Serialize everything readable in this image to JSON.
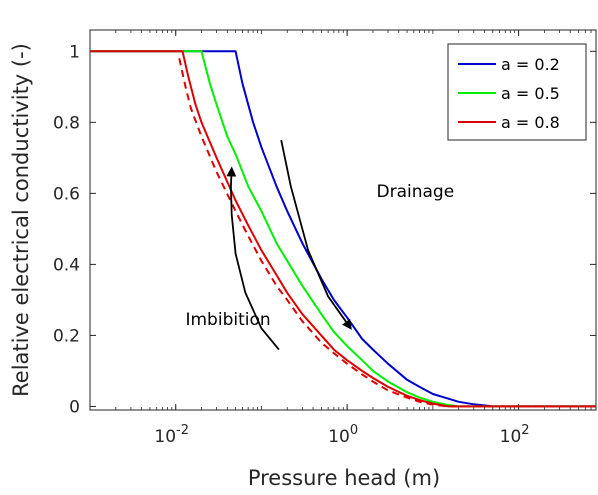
{
  "chart_data": {
    "type": "line",
    "xlabel": "Pressure head (m)",
    "ylabel": "Relative electrical conductivity (-)",
    "xscale": "log",
    "xlim": [
      0.001,
      800
    ],
    "ylim": [
      -0.01,
      1.06
    ],
    "x_ticks": [
      {
        "value": 0.01,
        "base": "10",
        "exp": "-2"
      },
      {
        "value": 1,
        "base": "10",
        "exp": "0"
      },
      {
        "value": 100,
        "base": "10",
        "exp": "2"
      }
    ],
    "y_ticks": [
      {
        "value": 0,
        "label": "0"
      },
      {
        "value": 0.2,
        "label": "0.2"
      },
      {
        "value": 0.4,
        "label": "0.4"
      },
      {
        "value": 0.6,
        "label": "0.6"
      },
      {
        "value": 0.8,
        "label": "0.8"
      },
      {
        "value": 1,
        "label": "1"
      }
    ],
    "legend_position": "top-right",
    "series": [
      {
        "name": "a = 0.2",
        "color": "#0000cc",
        "style": "solid",
        "points": [
          [
            0.001,
            1
          ],
          [
            0.05,
            1
          ],
          [
            0.06,
            0.91
          ],
          [
            0.08,
            0.8
          ],
          [
            0.1,
            0.73
          ],
          [
            0.15,
            0.62
          ],
          [
            0.2,
            0.55
          ],
          [
            0.3,
            0.46
          ],
          [
            0.5,
            0.36
          ],
          [
            0.7,
            0.3
          ],
          [
            1,
            0.25
          ],
          [
            1.5,
            0.19
          ],
          [
            2,
            0.16
          ],
          [
            3,
            0.12
          ],
          [
            5,
            0.075
          ],
          [
            7,
            0.055
          ],
          [
            10,
            0.035
          ],
          [
            15,
            0.022
          ],
          [
            20,
            0.013
          ],
          [
            30,
            0.006
          ],
          [
            50,
            0
          ],
          [
            800,
            0
          ]
        ]
      },
      {
        "name": "a = 0.5",
        "color": "#00ee00",
        "style": "solid",
        "points": [
          [
            0.001,
            1
          ],
          [
            0.02,
            1
          ],
          [
            0.025,
            0.91
          ],
          [
            0.03,
            0.85
          ],
          [
            0.04,
            0.76
          ],
          [
            0.05,
            0.71
          ],
          [
            0.07,
            0.62
          ],
          [
            0.1,
            0.55
          ],
          [
            0.15,
            0.46
          ],
          [
            0.2,
            0.41
          ],
          [
            0.3,
            0.34
          ],
          [
            0.5,
            0.26
          ],
          [
            0.7,
            0.21
          ],
          [
            1,
            0.17
          ],
          [
            1.5,
            0.13
          ],
          [
            2,
            0.1
          ],
          [
            3,
            0.07
          ],
          [
            5,
            0.04
          ],
          [
            7,
            0.025
          ],
          [
            10,
            0.013
          ],
          [
            15,
            0.004
          ],
          [
            20,
            0
          ],
          [
            800,
            0
          ]
        ]
      },
      {
        "name": "a = 0.8",
        "color": "#dd0000",
        "style": "solid",
        "points": [
          [
            0.001,
            1
          ],
          [
            0.012,
            1
          ],
          [
            0.014,
            0.93
          ],
          [
            0.017,
            0.85
          ],
          [
            0.02,
            0.8
          ],
          [
            0.03,
            0.7
          ],
          [
            0.05,
            0.58
          ],
          [
            0.07,
            0.51
          ],
          [
            0.1,
            0.44
          ],
          [
            0.15,
            0.37
          ],
          [
            0.2,
            0.32
          ],
          [
            0.3,
            0.26
          ],
          [
            0.5,
            0.2
          ],
          [
            0.7,
            0.16
          ],
          [
            1,
            0.13
          ],
          [
            1.5,
            0.1
          ],
          [
            2,
            0.08
          ],
          [
            3,
            0.055
          ],
          [
            5,
            0.03
          ],
          [
            7,
            0.018
          ],
          [
            10,
            0.008
          ],
          [
            15,
            0
          ],
          [
            800,
            0
          ]
        ]
      },
      {
        "name": "",
        "color": "#dd0000",
        "style": "dashed",
        "points": [
          [
            0.011,
            0.98
          ],
          [
            0.013,
            0.9
          ],
          [
            0.015,
            0.84
          ],
          [
            0.02,
            0.76
          ],
          [
            0.03,
            0.66
          ],
          [
            0.05,
            0.55
          ],
          [
            0.07,
            0.48
          ],
          [
            0.1,
            0.41
          ],
          [
            0.15,
            0.34
          ],
          [
            0.2,
            0.3
          ],
          [
            0.3,
            0.24
          ],
          [
            0.5,
            0.18
          ],
          [
            0.7,
            0.15
          ],
          [
            1,
            0.12
          ],
          [
            1.5,
            0.09
          ],
          [
            2,
            0.07
          ],
          [
            3,
            0.045
          ],
          [
            5,
            0.025
          ],
          [
            7,
            0.013
          ],
          [
            10,
            0.005
          ],
          [
            15,
            0
          ],
          [
            800,
            0
          ]
        ]
      }
    ],
    "annotations": [
      {
        "id": "drainage",
        "text": "Drainage",
        "x": 2.2,
        "y": 0.59
      },
      {
        "id": "imbibition",
        "text": "Imbibition",
        "x": 0.013,
        "y": 0.23
      }
    ],
    "arrows": [
      {
        "id": "drainage-arrow",
        "points": [
          [
            0.17,
            0.75
          ],
          [
            0.22,
            0.62
          ],
          [
            0.35,
            0.44
          ],
          [
            0.6,
            0.31
          ],
          [
            1.1,
            0.22
          ]
        ],
        "head": "end",
        "color": "#000000"
      },
      {
        "id": "imbibition-arrow",
        "points": [
          [
            0.16,
            0.16
          ],
          [
            0.1,
            0.22
          ],
          [
            0.065,
            0.32
          ],
          [
            0.05,
            0.43
          ],
          [
            0.045,
            0.54
          ],
          [
            0.044,
            0.62
          ],
          [
            0.045,
            0.67
          ]
        ],
        "head": "end",
        "color": "#000000"
      }
    ]
  }
}
